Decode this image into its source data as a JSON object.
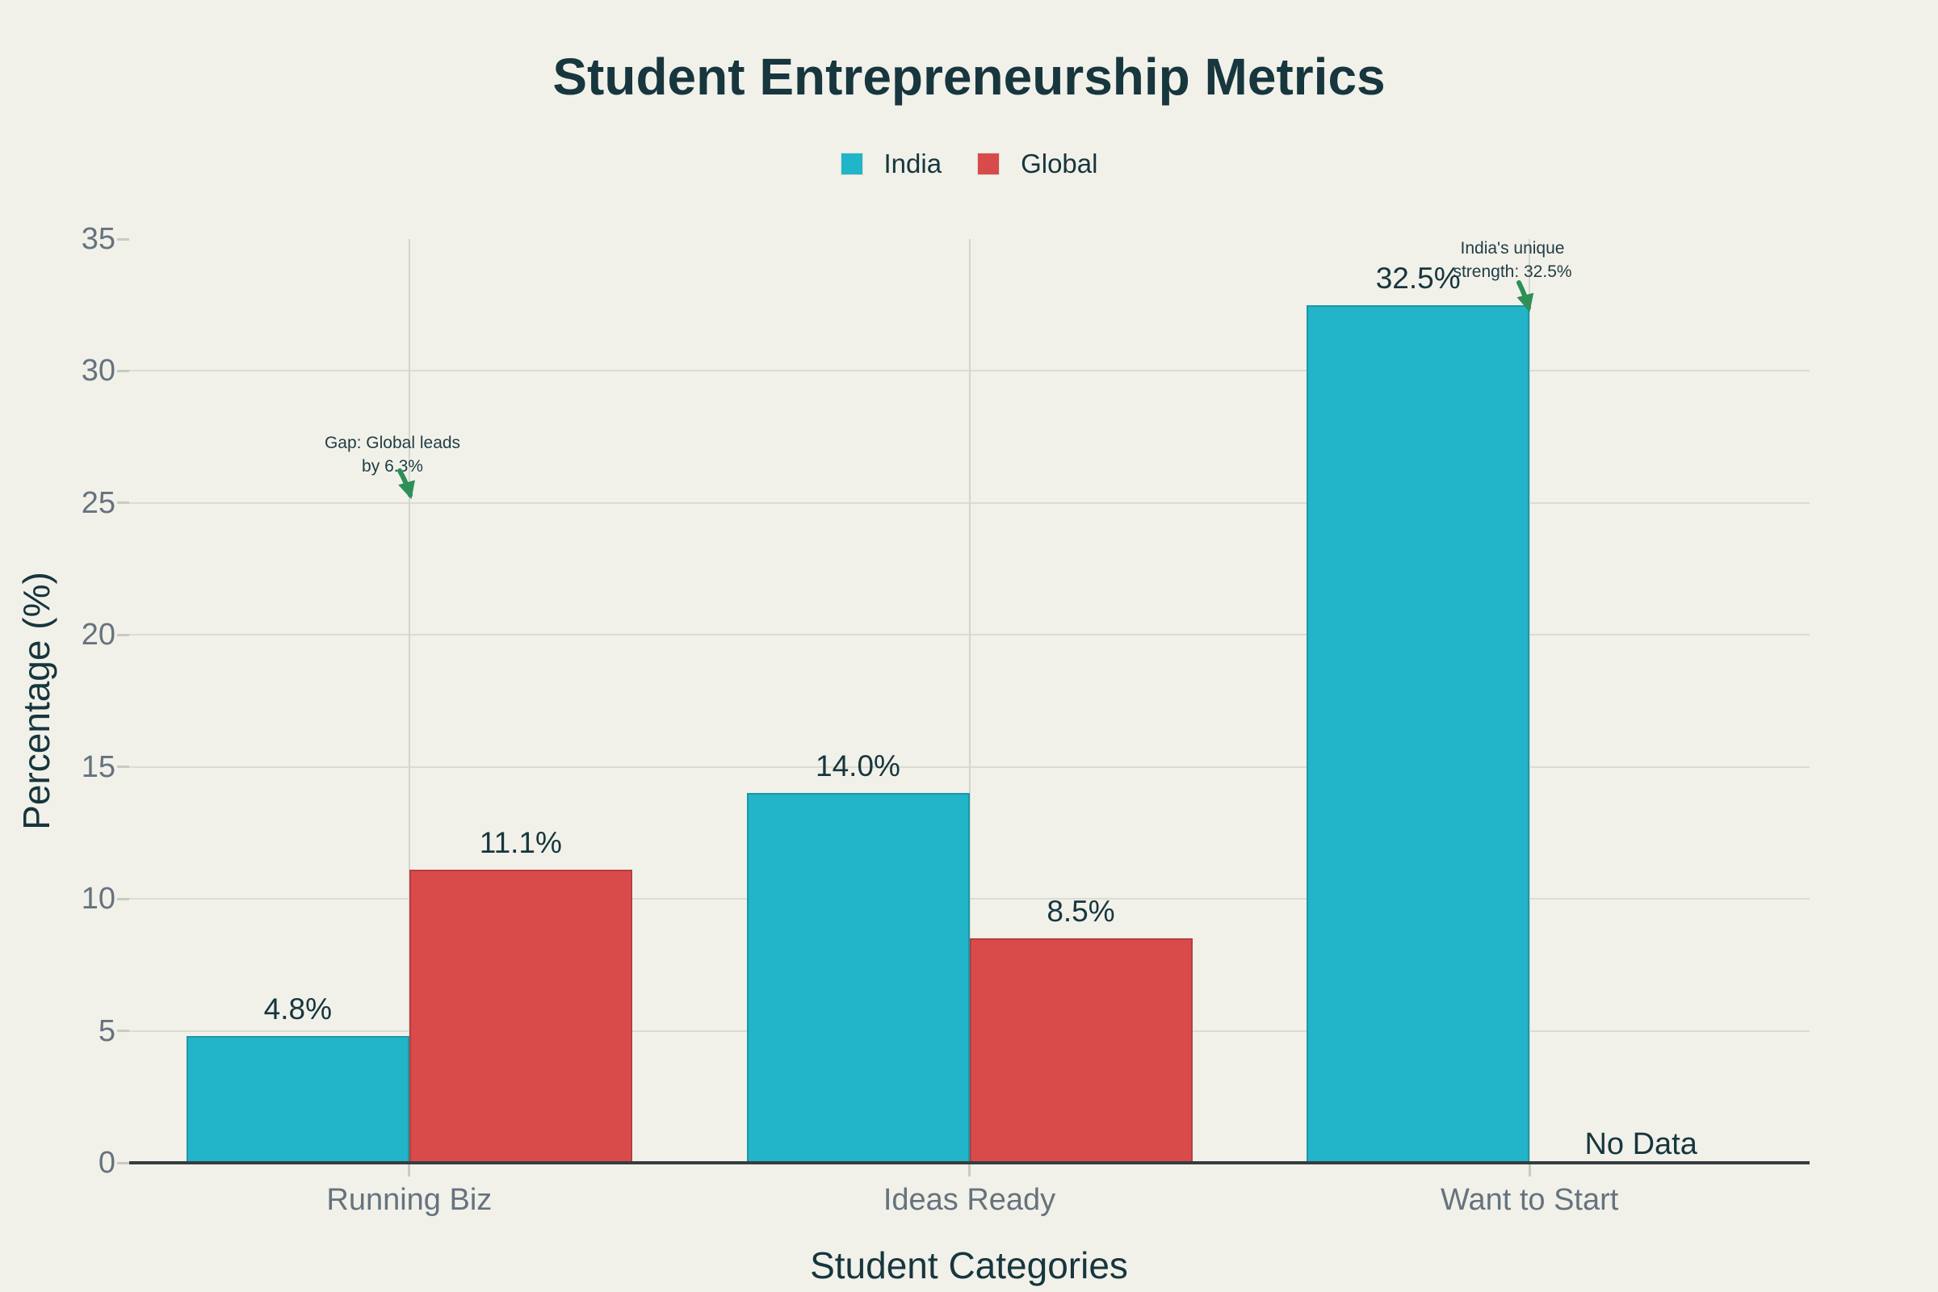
{
  "page": {
    "background_color": "#f1f1ea"
  },
  "chart_data": {
    "type": "bar",
    "title": "Student Entrepreneurship Metrics",
    "xlabel": "Student Categories",
    "ylabel": "Percentage (%)",
    "categories": [
      "Running Biz",
      "Ideas Ready",
      "Want to Start"
    ],
    "series": [
      {
        "name": "India",
        "color": "#22b4c8",
        "values": [
          4.8,
          14.0,
          32.5
        ],
        "value_labels": [
          "4.8%",
          "14.0%",
          "32.5%"
        ]
      },
      {
        "name": "Global",
        "color": "#d94b4b",
        "values": [
          11.1,
          8.5,
          null
        ],
        "value_labels": [
          "11.1%",
          "8.5%",
          "No Data"
        ]
      }
    ],
    "missing_data_label": "No Data",
    "ylim": [
      0,
      35
    ],
    "yticks": [
      0,
      5,
      10,
      15,
      20,
      25,
      30,
      35
    ],
    "ytick_labels": [
      "0",
      "5",
      "10",
      "15",
      "20",
      "25",
      "30",
      "35"
    ],
    "grid": true,
    "legend_position": "top-center",
    "annotations": [
      {
        "text_lines": [
          "Gap: Global leads",
          "by 6.3%"
        ],
        "category": "Running Biz",
        "value": 25,
        "arrow_color": "#2e8f57"
      },
      {
        "text_lines": [
          "India's unique",
          "strength: 32.5%"
        ],
        "category": "Want to Start",
        "value": 32.5,
        "arrow_color": "#2e8f57"
      }
    ],
    "colors": {
      "india_bar": "#22b4c8",
      "global_bar": "#d94b4b",
      "title_text": "#17363d",
      "tick_text": "#66737e",
      "gridline": "#dadbd2",
      "axis_line": "#363d40",
      "annotation_arrow": "#2e8f57",
      "background": "#f1f1ea"
    }
  }
}
